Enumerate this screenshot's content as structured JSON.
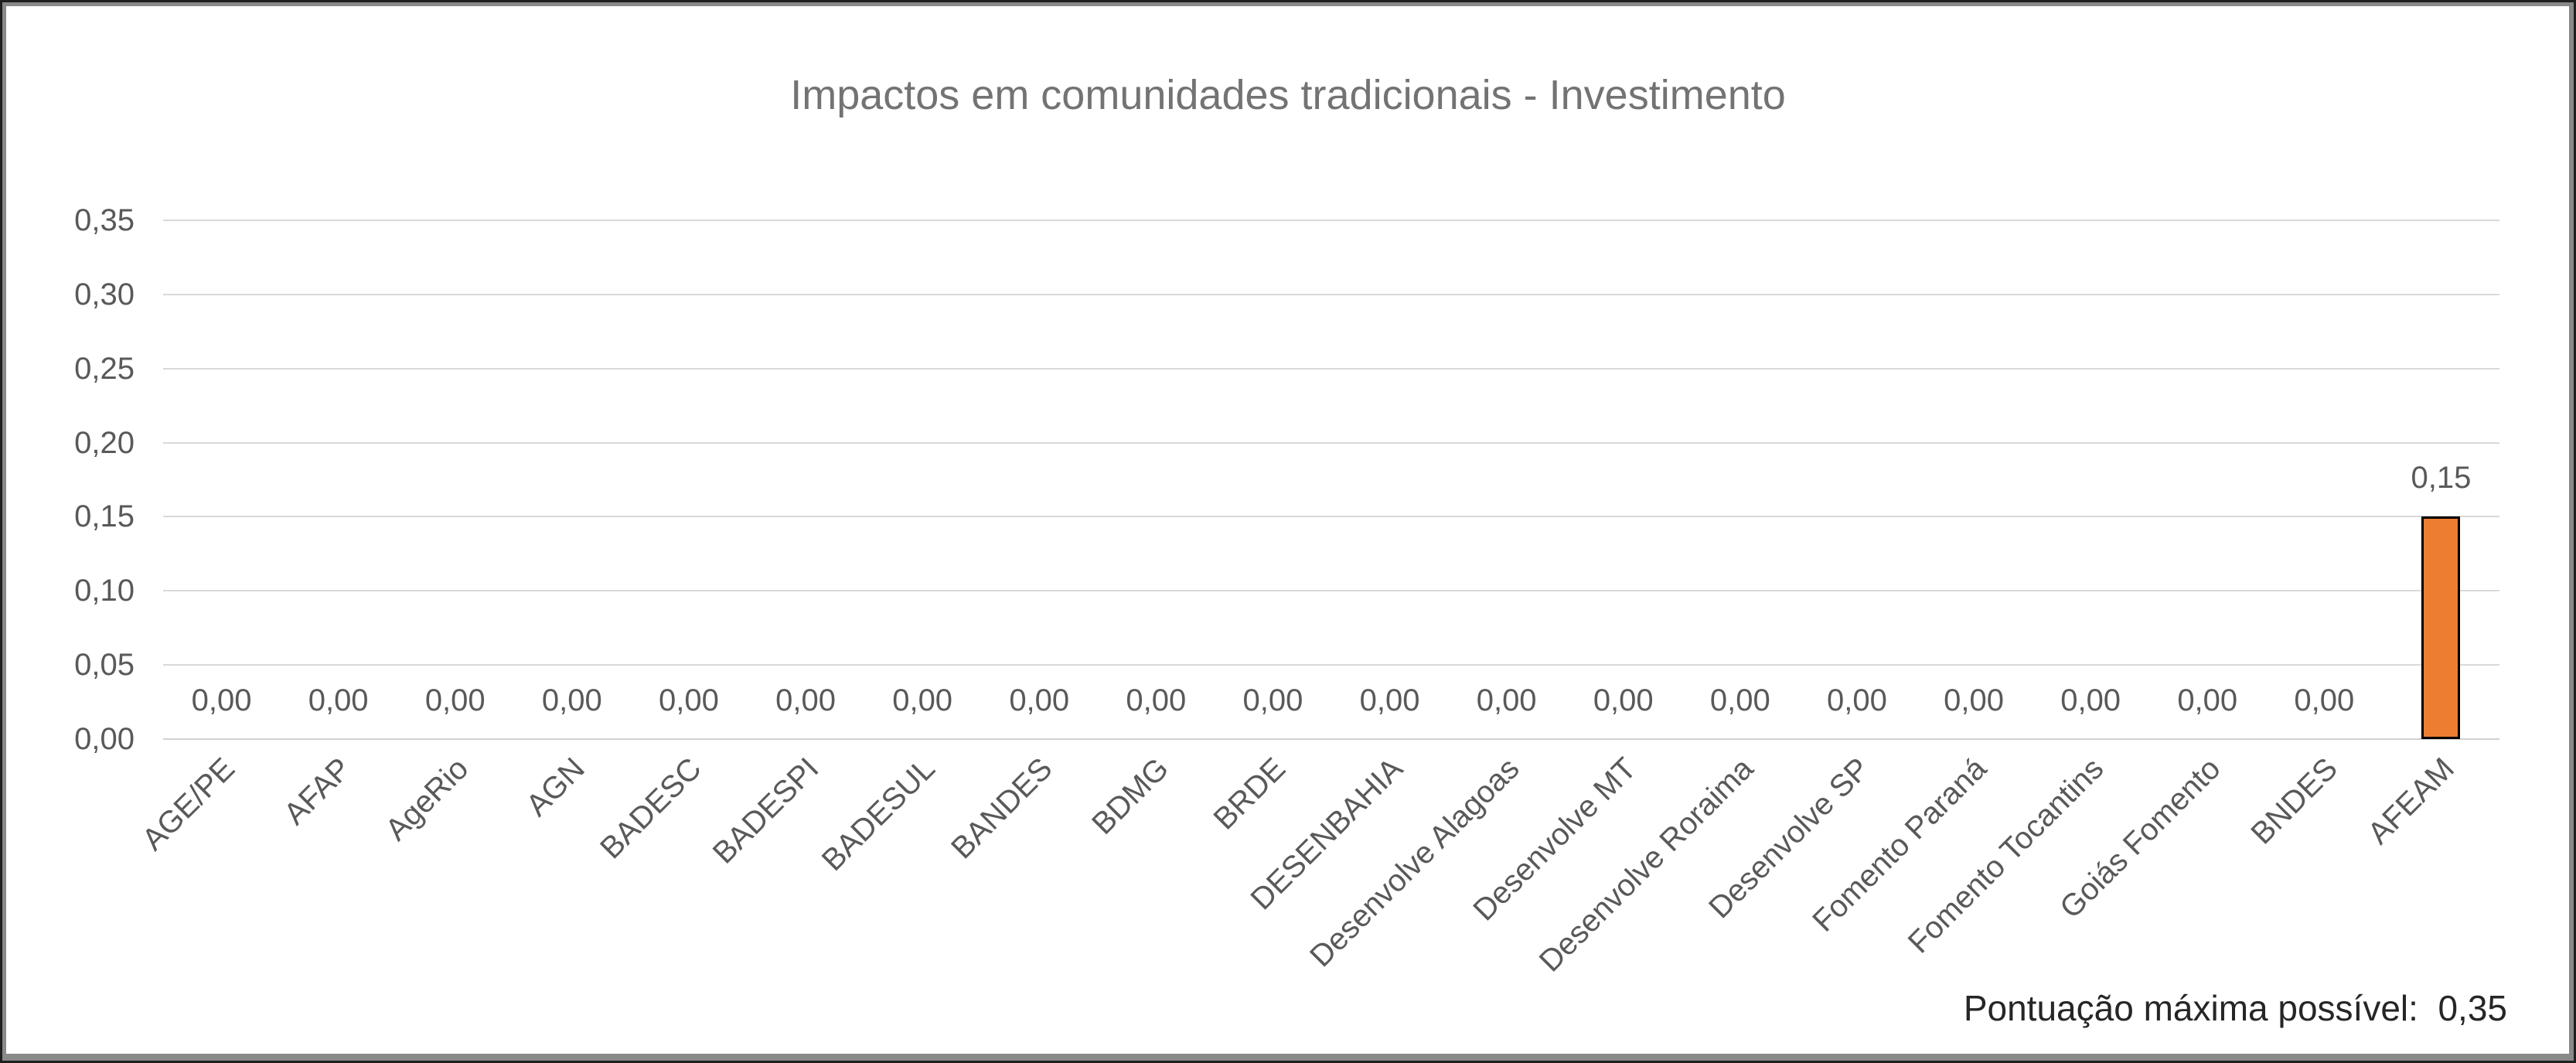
{
  "chart_data": {
    "type": "bar",
    "title": "Impactos em comunidades tradicionais - Investimento",
    "xlabel": "",
    "ylabel": "",
    "categories": [
      "AGE/PE",
      "AFAP",
      "AgeRio",
      "AGN",
      "BADESC",
      "BADESPI",
      "BADESUL",
      "BANDES",
      "BDMG",
      "BRDE",
      "DESENBAHIA",
      "Desenvolve Alagoas",
      "Desenvolve MT",
      "Desenvolve Roraima",
      "Desenvolve SP",
      "Fomento Paraná",
      "Fomento Tocantins",
      "Goiás Fomento",
      "BNDES",
      "AFEAM"
    ],
    "values": [
      0,
      0,
      0,
      0,
      0,
      0,
      0,
      0,
      0,
      0,
      0,
      0,
      0,
      0,
      0,
      0,
      0,
      0,
      0,
      0.15
    ],
    "value_labels": [
      "0,00",
      "0,00",
      "0,00",
      "0,00",
      "0,00",
      "0,00",
      "0,00",
      "0,00",
      "0,00",
      "0,00",
      "0,00",
      "0,00",
      "0,00",
      "0,00",
      "0,00",
      "0,00",
      "0,00",
      "0,00",
      "0,00",
      "0,15"
    ],
    "ylim": [
      0,
      0.35
    ],
    "y_tick_values": [
      0.35,
      0.3,
      0.25,
      0.2,
      0.15,
      0.1,
      0.05,
      0.0
    ],
    "y_tick_labels": [
      "0,35",
      "0,30",
      "0,25",
      "0,20",
      "0,15",
      "0,10",
      "0,05",
      "0,00"
    ],
    "grid": true,
    "legend": false,
    "x_label_rotation_deg": 45,
    "annotation": "Pontuação máxima possível:  0,35"
  },
  "style": {
    "bar_fill": "#ED7D31",
    "bar_border": "#000000",
    "gridline_color": "#D9D9D9",
    "axis_line_color": "#D0D0D0",
    "title_color": "#737373",
    "tick_text_color": "#595959",
    "data_label_color": "#595959",
    "footer_text_color": "#262626",
    "panel_border_color": "#8A8A8A",
    "frame_border_color": "#1F1F1F",
    "background": "#FFFFFF"
  }
}
